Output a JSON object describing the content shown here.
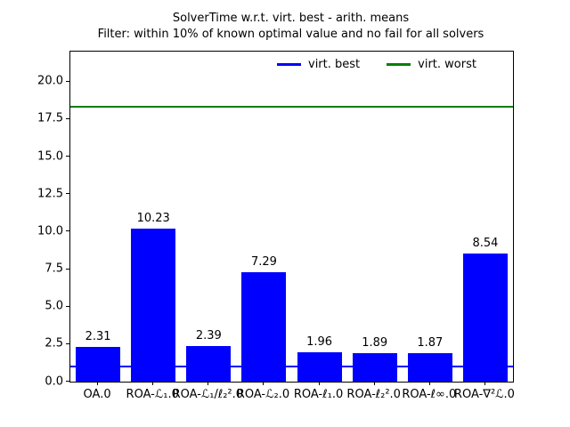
{
  "chart_data": {
    "type": "bar",
    "title": "SolverTime w.r.t. virt. best - arith. means",
    "subtitle": "Filter: within 10% of known optimal value and no fail for all solvers",
    "categories": [
      "OA.0",
      "ROA-ℒ₁.0",
      "ROA-ℒ₁/ℓ₂².0",
      "ROA-ℒ₂.0",
      "ROA-ℓ₁.0",
      "ROA-ℓ₂².0",
      "ROA-ℓ∞.0",
      "ROA-∇²ℒ.0"
    ],
    "values": [
      2.31,
      10.23,
      2.39,
      7.29,
      1.96,
      1.89,
      1.87,
      8.54
    ],
    "value_labels": [
      "2.31",
      "10.23",
      "2.39",
      "7.29",
      "1.96",
      "1.89",
      "1.87",
      "8.54"
    ],
    "bar_color": "#0000ff",
    "xlabel": "",
    "ylabel": "",
    "ylim": [
      0,
      22
    ],
    "yticks": [
      0.0,
      2.5,
      5.0,
      7.5,
      10.0,
      12.5,
      15.0,
      17.5,
      20.0
    ],
    "ytick_labels": [
      "0.0",
      "2.5",
      "5.0",
      "7.5",
      "10.0",
      "12.5",
      "15.0",
      "17.5",
      "20.0"
    ],
    "grid": false,
    "hlines": [
      {
        "name": "virt-best",
        "label": "virt. best",
        "value": 1.0,
        "color": "#0000ff"
      },
      {
        "name": "virt-worst",
        "label": "virt. worst",
        "value": 18.35,
        "color": "#008000"
      }
    ],
    "legend": {
      "position": "upper center-right, horizontal",
      "items": [
        {
          "label": "virt. best",
          "color": "#0000ff"
        },
        {
          "label": "virt. worst",
          "color": "#008000"
        }
      ]
    }
  }
}
